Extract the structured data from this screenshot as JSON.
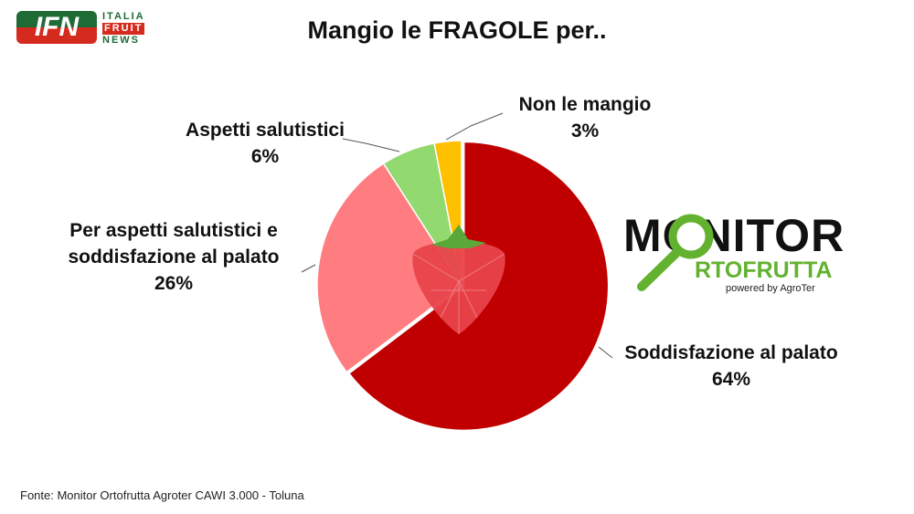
{
  "logo_ifn": {
    "mark": "IFN",
    "line1": "ITALIA",
    "line2": "FRUIT",
    "line3": "NEWS"
  },
  "logo_monitor": {
    "line1": "MONITOR",
    "line2": "RTOFRUTTA",
    "powered": "powered by AgroTer"
  },
  "source": "Fonte: Monitor Ortofrutta Agroter CAWI 3.000 - Toluna",
  "chart_data": {
    "type": "pie",
    "title": "Mangio le FRAGOLE per..",
    "slices": [
      {
        "label": "Soddisfazione al palato",
        "value": 64,
        "display": "64%",
        "color": "#c00000"
      },
      {
        "label": "Per aspetti salutistici e soddisfazione al palato",
        "label_lines": [
          "Per aspetti salutistici e",
          "soddisfazione al palato"
        ],
        "value": 26,
        "display": "26%",
        "color": "#ff7c80"
      },
      {
        "label": "Aspetti salutistici",
        "value": 6,
        "display": "6%",
        "color": "#92d96f"
      },
      {
        "label": "Non le mangio",
        "value": 3,
        "display": "3%",
        "color": "#ffc000"
      }
    ],
    "start": "top",
    "direction": "clockwise",
    "legend": "none"
  }
}
